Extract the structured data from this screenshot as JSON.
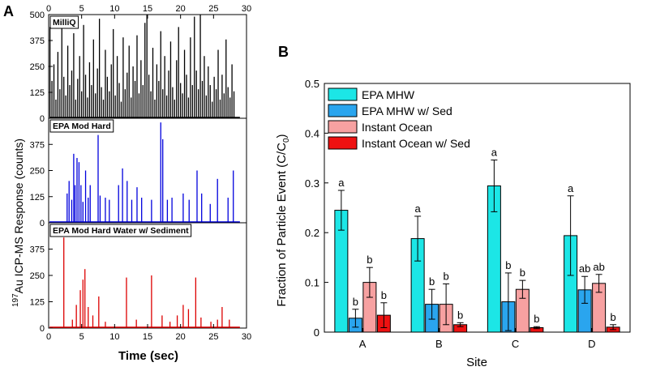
{
  "chart_data": [
    {
      "type": "line",
      "panel_label": "A",
      "xlabel": "Time (sec)",
      "ylabel_sup": "197",
      "ylabel": "Au ICP-MS Response (counts)",
      "xlim": [
        0,
        30
      ],
      "x_ticks": [
        0,
        5,
        10,
        15,
        20,
        25,
        30
      ],
      "top_x_ticks": [
        0,
        5,
        10,
        15,
        20,
        25,
        30
      ],
      "subplots": [
        {
          "label": "MilliQ",
          "color": "#000000",
          "ylim": [
            0,
            500
          ],
          "y_ticks": [
            0,
            125,
            250,
            375,
            500
          ],
          "spikes": [
            [
              0.2,
              440
            ],
            [
              0.5,
              180
            ],
            [
              0.8,
              260
            ],
            [
              1.1,
              90
            ],
            [
              1.4,
              320
            ],
            [
              1.7,
              140
            ],
            [
              2.0,
              480
            ],
            [
              2.3,
              200
            ],
            [
              2.6,
              110
            ],
            [
              2.9,
              350
            ],
            [
              3.2,
              160
            ],
            [
              3.5,
              230
            ],
            [
              3.8,
              410
            ],
            [
              4.1,
              90
            ],
            [
              4.4,
              190
            ],
            [
              4.7,
              300
            ],
            [
              5.0,
              130
            ],
            [
              5.3,
              450
            ],
            [
              5.6,
              210
            ],
            [
              5.9,
              100
            ],
            [
              6.2,
              270
            ],
            [
              6.5,
              160
            ],
            [
              6.8,
              380
            ],
            [
              7.1,
              120
            ],
            [
              7.4,
              240
            ],
            [
              7.7,
              480
            ],
            [
              8.0,
              150
            ],
            [
              8.3,
              90
            ],
            [
              8.6,
              330
            ],
            [
              8.9,
              200
            ],
            [
              9.2,
              130
            ],
            [
              9.5,
              260
            ],
            [
              9.8,
              430
            ],
            [
              10.1,
              110
            ],
            [
              10.4,
              300
            ],
            [
              10.7,
              170
            ],
            [
              11.0,
              80
            ],
            [
              11.3,
              390
            ],
            [
              11.6,
              140
            ],
            [
              11.9,
              220
            ],
            [
              12.2,
              350
            ],
            [
              12.5,
              100
            ],
            [
              12.8,
              250
            ],
            [
              13.1,
              180
            ],
            [
              13.4,
              400
            ],
            [
              13.7,
              120
            ],
            [
              14.0,
              280
            ],
            [
              14.3,
              160
            ],
            [
              14.6,
              460
            ],
            [
              14.9,
              500
            ],
            [
              15.2,
              210
            ],
            [
              15.5,
              130
            ],
            [
              15.8,
              340
            ],
            [
              16.1,
              90
            ],
            [
              16.4,
              260
            ],
            [
              16.7,
              180
            ],
            [
              17.0,
              420
            ],
            [
              17.3,
              140
            ],
            [
              17.6,
              300
            ],
            [
              17.9,
              110
            ],
            [
              18.2,
              230
            ],
            [
              18.5,
              370
            ],
            [
              18.8,
              150
            ],
            [
              19.1,
              90
            ],
            [
              19.4,
              280
            ],
            [
              19.7,
              440
            ],
            [
              20.0,
              170
            ],
            [
              20.3,
              120
            ],
            [
              20.6,
              330
            ],
            [
              20.9,
              210
            ],
            [
              21.2,
              100
            ],
            [
              21.5,
              390
            ],
            [
              21.8,
              160
            ],
            [
              22.1,
              490
            ],
            [
              22.4,
              230
            ],
            [
              22.7,
              140
            ],
            [
              23.0,
              500
            ],
            [
              23.3,
              180
            ],
            [
              23.6,
              300
            ],
            [
              23.9,
              110
            ],
            [
              24.2,
              250
            ],
            [
              24.5,
              160
            ],
            [
              24.8,
              80
            ],
            [
              25.1,
              200
            ],
            [
              25.4,
              140
            ],
            [
              25.7,
              330
            ],
            [
              26.0,
              90
            ],
            [
              26.3,
              210
            ],
            [
              26.6,
              120
            ],
            [
              26.9,
              380
            ],
            [
              27.2,
              150
            ],
            [
              27.5,
              100
            ],
            [
              27.8,
              260
            ],
            [
              28.1,
              130
            ]
          ]
        },
        {
          "label": "EPA Mod Hard",
          "color": "#0000dd",
          "ylim": [
            0,
            500
          ],
          "y_ticks": [
            0,
            125,
            250,
            375
          ],
          "spikes": [
            [
              2.8,
              140
            ],
            [
              3.1,
              200
            ],
            [
              3.5,
              110
            ],
            [
              3.8,
              330
            ],
            [
              4.0,
              180
            ],
            [
              4.3,
              310
            ],
            [
              4.6,
              290
            ],
            [
              4.9,
              180
            ],
            [
              5.2,
              100
            ],
            [
              5.6,
              250
            ],
            [
              6.0,
              120
            ],
            [
              6.3,
              180
            ],
            [
              7.5,
              420
            ],
            [
              7.8,
              130
            ],
            [
              8.6,
              120
            ],
            [
              9.2,
              110
            ],
            [
              10.6,
              180
            ],
            [
              11.2,
              260
            ],
            [
              11.9,
              200
            ],
            [
              12.6,
              110
            ],
            [
              13.4,
              170
            ],
            [
              14.1,
              120
            ],
            [
              15.6,
              110
            ],
            [
              17.0,
              480
            ],
            [
              17.3,
              400
            ],
            [
              18.0,
              110
            ],
            [
              18.7,
              120
            ],
            [
              20.4,
              140
            ],
            [
              21.3,
              110
            ],
            [
              22.5,
              250
            ],
            [
              23.2,
              140
            ],
            [
              24.5,
              90
            ],
            [
              25.6,
              210
            ],
            [
              27.2,
              120
            ],
            [
              28.0,
              250
            ]
          ]
        },
        {
          "label": "EPA Mod Hard Water w/ Sediment",
          "color": "#dd0000",
          "ylim": [
            0,
            500
          ],
          "y_ticks": [
            0,
            125,
            250,
            375
          ],
          "spikes": [
            [
              2.3,
              430
            ],
            [
              3.6,
              40
            ],
            [
              4.2,
              110
            ],
            [
              4.8,
              180
            ],
            [
              5.2,
              230
            ],
            [
              5.5,
              280
            ],
            [
              6.0,
              100
            ],
            [
              6.7,
              60
            ],
            [
              7.6,
              150
            ],
            [
              8.6,
              30
            ],
            [
              11.8,
              240
            ],
            [
              13.3,
              40
            ],
            [
              15.6,
              250
            ],
            [
              17.2,
              60
            ],
            [
              18.4,
              30
            ],
            [
              19.5,
              60
            ],
            [
              20.4,
              110
            ],
            [
              21.2,
              90
            ],
            [
              22.3,
              240
            ],
            [
              23.1,
              50
            ],
            [
              24.6,
              30
            ],
            [
              25.6,
              40
            ],
            [
              26.3,
              100
            ],
            [
              27.4,
              40
            ]
          ]
        }
      ]
    },
    {
      "type": "bar",
      "panel_label": "B",
      "xlabel": "Site",
      "ylabel": "Fraction of Particle Event (C/C",
      "ylabel_sub": "0",
      "ylabel_end": ")",
      "categories": [
        "A",
        "B",
        "C",
        "D"
      ],
      "ylim": [
        0,
        0.5
      ],
      "y_ticks": [
        "0",
        "0.1",
        "0.2",
        "0.3",
        "0.4",
        "0.5"
      ],
      "series": [
        {
          "name": "EPA MHW",
          "color": "#1ce6e6",
          "values": [
            0.245,
            0.188,
            0.294,
            0.194
          ],
          "errors": [
            0.04,
            0.045,
            0.052,
            0.08
          ],
          "letters": [
            "a",
            "a",
            "a",
            "a"
          ]
        },
        {
          "name": "EPA MHW w/ Sed",
          "color": "#2aa5ee",
          "values": [
            0.028,
            0.056,
            0.061,
            0.085
          ],
          "errors": [
            0.018,
            0.03,
            0.058,
            0.027
          ],
          "letters": [
            "b",
            "b",
            "b",
            "ab"
          ]
        },
        {
          "name": "Instant Ocean",
          "color": "#f7a1a1",
          "values": [
            0.1,
            0.056,
            0.086,
            0.098
          ],
          "errors": [
            0.03,
            0.041,
            0.018,
            0.018
          ],
          "letters": [
            "b",
            "b",
            "b",
            "ab"
          ]
        },
        {
          "name": "Instant Ocean w/ Sed",
          "color": "#ee1111",
          "values": [
            0.034,
            0.015,
            0.009,
            0.01
          ],
          "errors": [
            0.025,
            0.004,
            0.002,
            0.005
          ],
          "letters": [
            "b",
            "b",
            "b",
            "b"
          ]
        }
      ]
    }
  ]
}
